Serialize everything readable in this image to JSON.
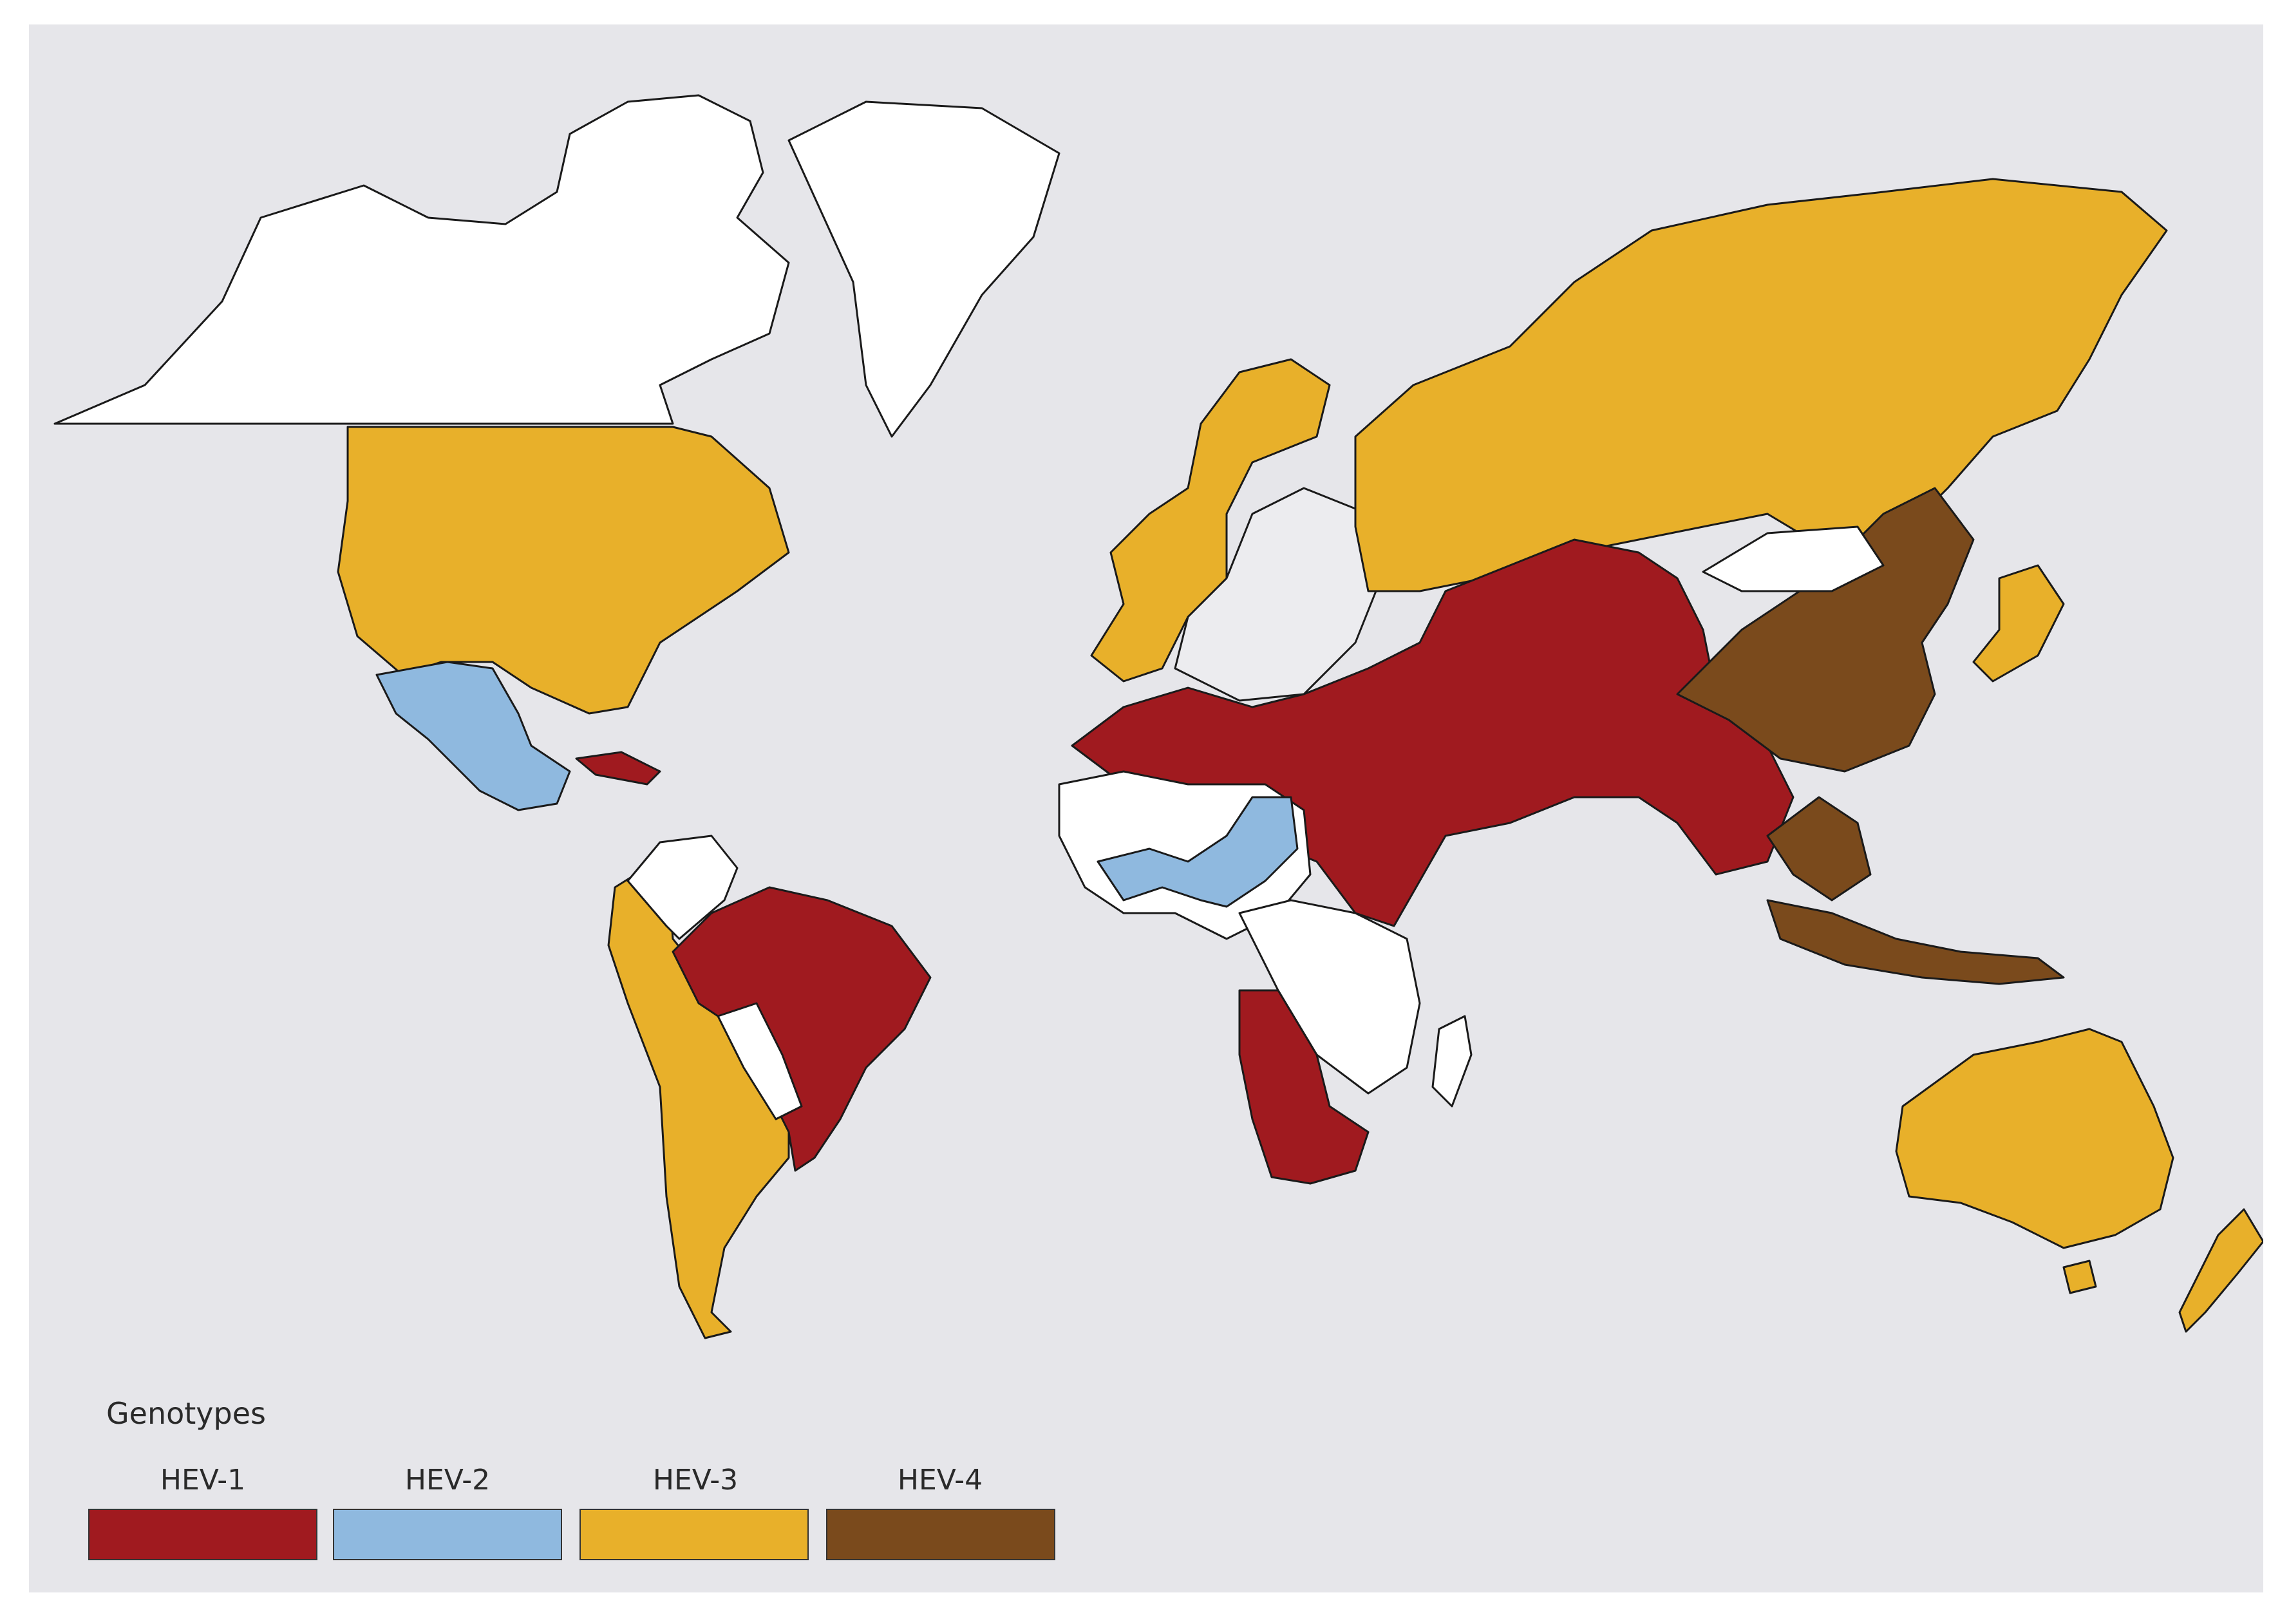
{
  "legend": {
    "title": "Genotypes",
    "items": [
      {
        "label": "HEV-1",
        "color": "#a01a1f"
      },
      {
        "label": "HEV-2",
        "color": "#8fb9df"
      },
      {
        "label": "HEV-3",
        "color": "#e8b02a"
      },
      {
        "label": "HEV-4",
        "color": "#7a4a1c"
      }
    ]
  },
  "colors": {
    "background": "#e6e6ea",
    "no_data": "#ffffff",
    "no_data_light": "#ececef",
    "HEV-1": "#a01a1f",
    "HEV-2": "#8fb9df",
    "HEV-3": "#e8b02a",
    "HEV-4": "#7a4a1c"
  },
  "regions": [
    {
      "name": "alaska-canada-north",
      "genotype": "none"
    },
    {
      "name": "greenland",
      "genotype": "none"
    },
    {
      "name": "usa-canada-south",
      "genotype": "HEV-3"
    },
    {
      "name": "mexico",
      "genotype": "HEV-2"
    },
    {
      "name": "cuba",
      "genotype": "HEV-1"
    },
    {
      "name": "brazil",
      "genotype": "HEV-1"
    },
    {
      "name": "south-america-west",
      "genotype": "HEV-3"
    },
    {
      "name": "europe-west",
      "genotype": "HEV-3"
    },
    {
      "name": "europe-central",
      "genotype": "none"
    },
    {
      "name": "russia",
      "genotype": "HEV-3"
    },
    {
      "name": "north-africa-middle-east-south-asia",
      "genotype": "HEV-1"
    },
    {
      "name": "west-africa",
      "genotype": "HEV-2"
    },
    {
      "name": "southern-africa",
      "genotype": "HEV-1"
    },
    {
      "name": "china",
      "genotype": "HEV-4"
    },
    {
      "name": "southeast-asia",
      "genotype": "HEV-4"
    },
    {
      "name": "japan",
      "genotype": "HEV-3"
    },
    {
      "name": "australia",
      "genotype": "HEV-3"
    },
    {
      "name": "new-zealand",
      "genotype": "HEV-3"
    }
  ]
}
